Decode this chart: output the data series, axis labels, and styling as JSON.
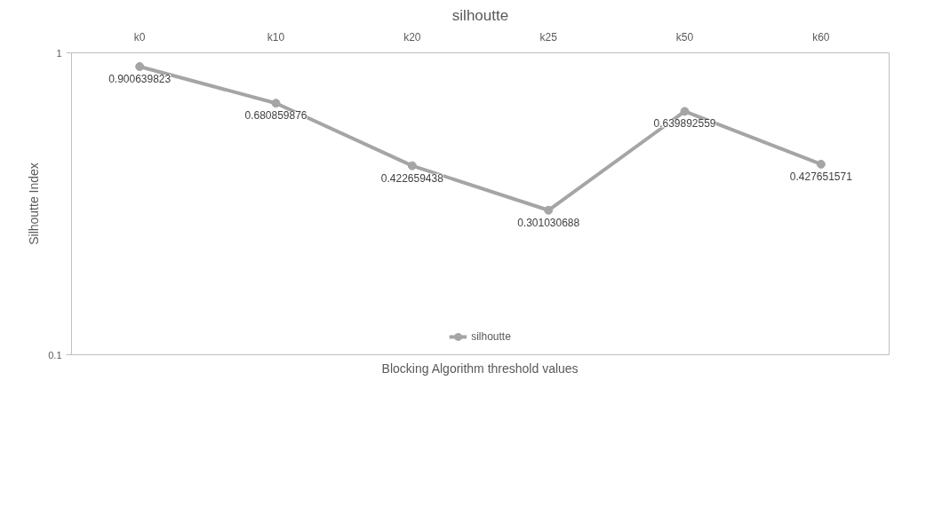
{
  "chart_data": {
    "type": "line",
    "title": "silhoutte",
    "xlabel": "Blocking Algorithm threshold values",
    "ylabel": "Silhoutte Index",
    "categories": [
      "k0",
      "k10",
      "k20",
      "k25",
      "k50",
      "k60"
    ],
    "series": [
      {
        "name": "silhoutte",
        "color": "#a5a5a5",
        "values": [
          0.900639823,
          0.680859876,
          0.422659438,
          0.301030688,
          0.639892559,
          0.427651571
        ]
      }
    ],
    "log": "y",
    "ylim": [
      0.1,
      1
    ],
    "yticks": [
      0.1,
      1
    ],
    "grid": false,
    "legend": "bottom",
    "marker": "circle",
    "line_style": "solid",
    "data_labels": true
  }
}
